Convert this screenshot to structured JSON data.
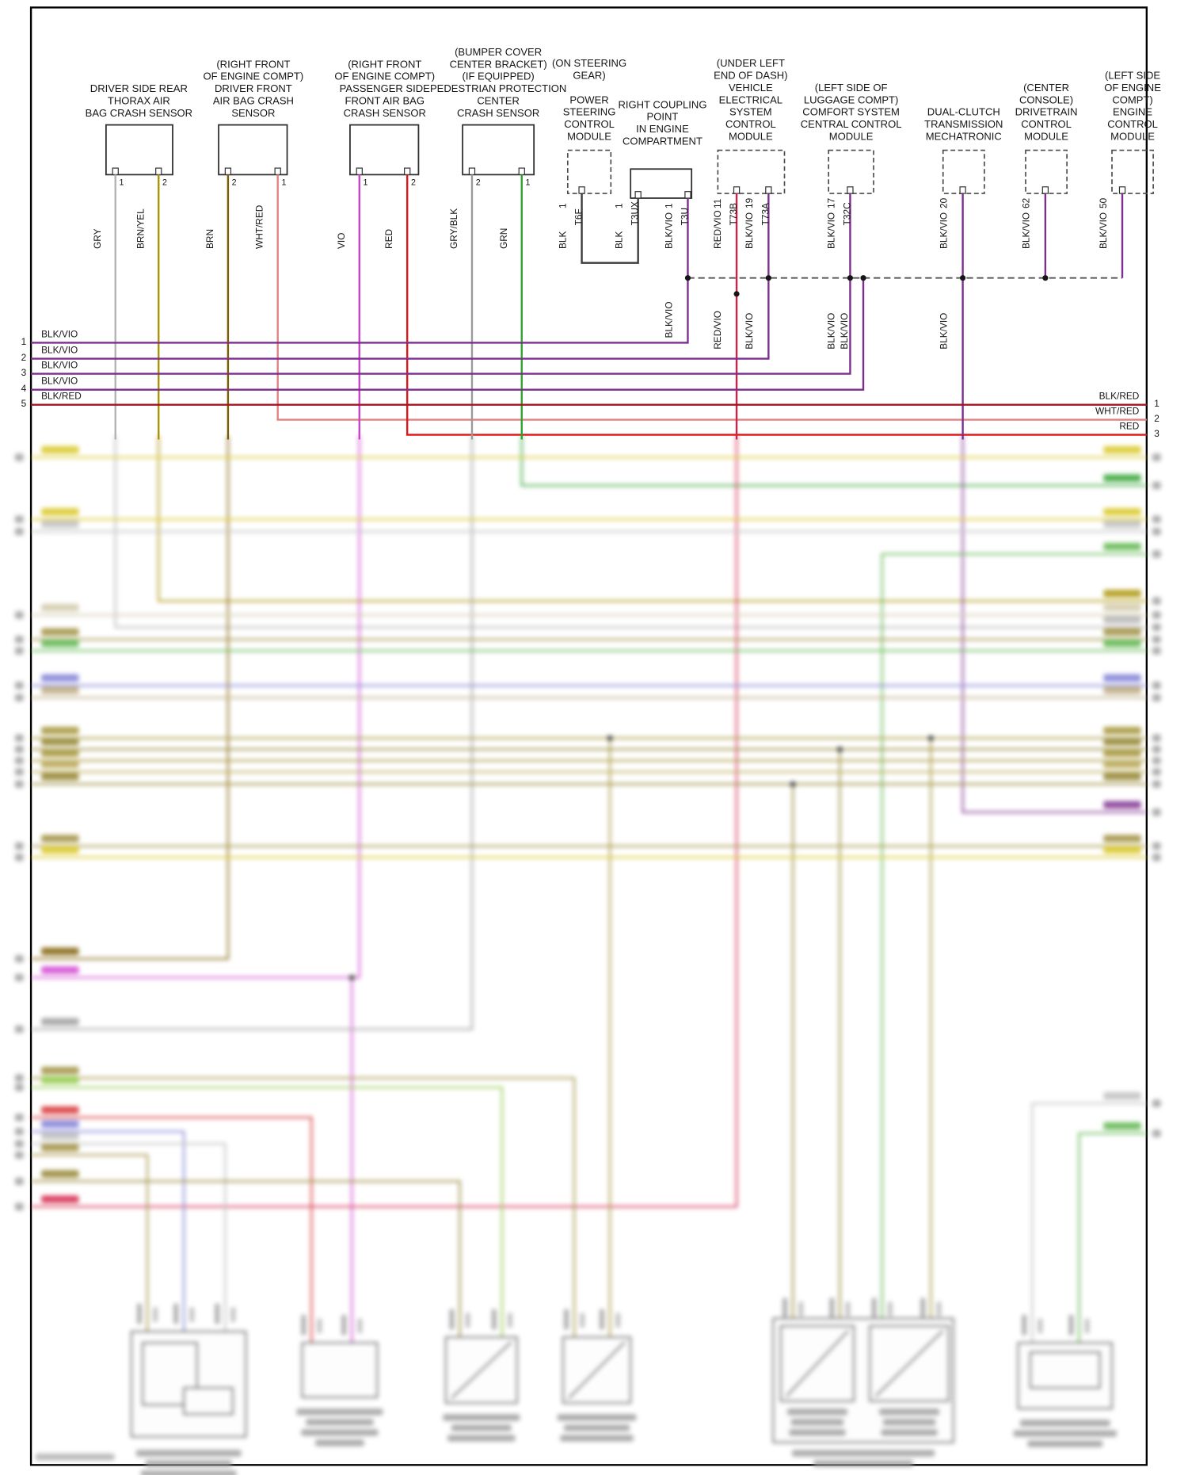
{
  "diagram": {
    "components": [
      {
        "id": "driver-side-rear-thorax-air-bag-crash-sensor",
        "label": "DRIVER SIDE REAR\nTHORAX AIR\nBAG CRASH SENSOR",
        "pins": [
          {
            "number": "1",
            "wire": "GRY"
          },
          {
            "number": "2",
            "wire": "BRN/YEL"
          }
        ]
      },
      {
        "id": "driver-front-air-bag-crash-sensor",
        "label": "(RIGHT FRONT\nOF ENGINE COMPT)\nDRIVER FRONT\nAIR BAG CRASH\nSENSOR",
        "pins": [
          {
            "number": "2",
            "wire": "BRN"
          },
          {
            "number": "1",
            "wire": "WHT/RED"
          }
        ]
      },
      {
        "id": "passenger-side-front-air-bag-crash-sensor",
        "label": "(RIGHT FRONT\nOF ENGINE COMPT)\nPASSENGER SIDE\nFRONT AIR BAG\nCRASH SENSOR",
        "pins": [
          {
            "number": "1",
            "wire": "VIO"
          },
          {
            "number": "2",
            "wire": "RED"
          }
        ]
      },
      {
        "id": "pedestrian-protection-center-crash-sensor",
        "label": "(BUMPER COVER\nCENTER BRACKET)\n(IF EQUIPPED)\nPEDESTRIAN PROTECTION\nCENTER\nCRASH SENSOR",
        "pins": [
          {
            "number": "2",
            "wire": "GRY/BLK"
          },
          {
            "number": "1",
            "wire": "GRN"
          }
        ]
      },
      {
        "id": "power-steering-control-module",
        "label": "(ON STEERING\nGEAR)\n\nPOWER\nSTEERING\nCONTROL\nMODULE",
        "pins": [
          {
            "number": "1",
            "connector": "T6F",
            "wire": "BLK"
          }
        ]
      },
      {
        "id": "right-coupling-point",
        "label": "RIGHT COUPLING\nPOINT\nIN ENGINE\nCOMPARTMENT",
        "pins": [
          {
            "number": "1",
            "connector": "T3UX",
            "wire": "BLK"
          },
          {
            "number": "1",
            "connector": "T3U",
            "wire": "BLK/VIO"
          }
        ]
      },
      {
        "id": "vehicle-electrical-system-control-module",
        "label": "(UNDER LEFT\nEND OF DASH)\nVEHICLE\nELECTRICAL\nSYSTEM\nCONTROL\nMODULE",
        "pins": [
          {
            "number": "11",
            "connector": "T73B",
            "wire": "RED/VIO"
          },
          {
            "number": "19",
            "connector": "T73A",
            "wire": "BLK/VIO"
          }
        ]
      },
      {
        "id": "comfort-system-central-control-module",
        "label": "(LEFT SIDE OF\nLUGGAGE COMPT)\nCOMFORT SYSTEM\nCENTRAL CONTROL\nMODULE",
        "pins": [
          {
            "number": "17",
            "connector": "T32C",
            "wire": "BLK/VIO"
          }
        ]
      },
      {
        "id": "dual-clutch-transmission-mechatronic",
        "label": "DUAL-CLUTCH\nTRANSMISSION\nMECHATRONIC",
        "pins": [
          {
            "number": "20",
            "wire": "BLK/VIO"
          }
        ]
      },
      {
        "id": "drivetrain-control-module",
        "label": "(CENTER\nCONSOLE)\nDRIVETRAIN\nCONTROL\nMODULE",
        "pins": [
          {
            "number": "62",
            "wire": "BLK/VIO"
          }
        ]
      },
      {
        "id": "engine-control-module",
        "label": "(LEFT SIDE\nOF ENGINE\nCOMPT)\nENGINE\nCONTROL\nMODULE",
        "pins": [
          {
            "number": "50",
            "wire": "BLK/VIO"
          }
        ]
      }
    ],
    "bus_labels": [
      "BLK/VIO",
      "RED/VIO",
      "BLK/VIO",
      "BLK/VIO",
      "BLK/VIO",
      "BLK/VIO"
    ],
    "left_rail": [
      {
        "num": "1",
        "wire": "BLK/VIO"
      },
      {
        "num": "2",
        "wire": "BLK/VIO"
      },
      {
        "num": "3",
        "wire": "BLK/VIO"
      },
      {
        "num": "4",
        "wire": "BLK/VIO"
      },
      {
        "num": "5",
        "wire": "BLK/RED"
      }
    ],
    "right_rail": [
      {
        "num": "1",
        "wire": "BLK/RED"
      },
      {
        "num": "2",
        "wire": "WHT/RED"
      },
      {
        "num": "3",
        "wire": "RED"
      }
    ],
    "colors": {
      "GRY": "#b3b3b3",
      "BRN/YEL": "#ab9200",
      "BRN": "#7d5c00",
      "WHT/RED": "#e08080",
      "VIO": "#cf3fcf",
      "RED": "#e01616",
      "GRY/BLK": "#9a9a9a",
      "GRN": "#2fa12f",
      "BLK": "#3c3c3c",
      "BLK/VIO": "#7c2d8e",
      "RED/VIO": "#d42045",
      "BLK/RED": "#a31523"
    }
  }
}
